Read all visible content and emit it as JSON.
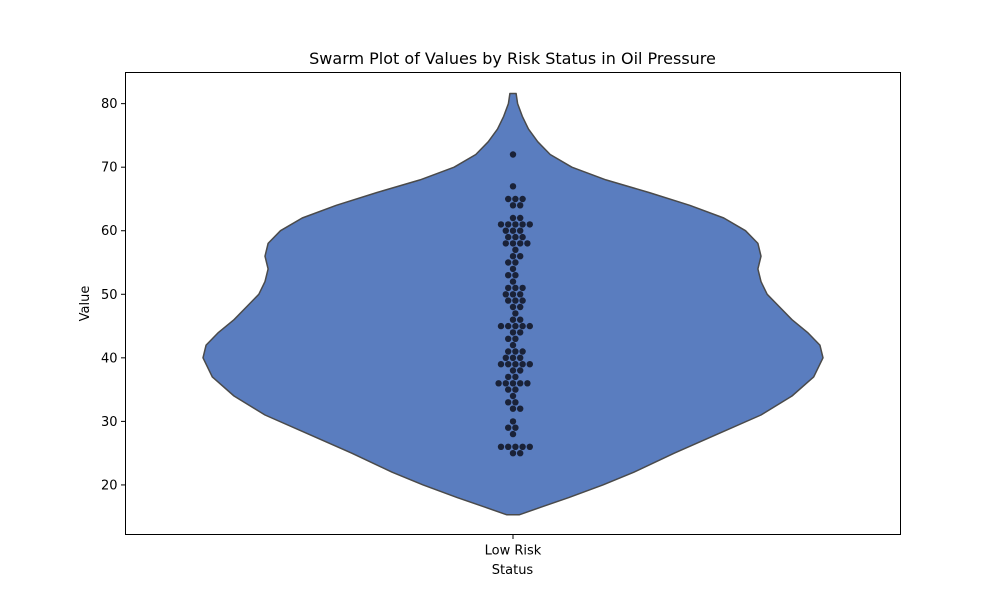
{
  "chart_data": {
    "type": "violin",
    "overlay": "swarm",
    "title": "Swarm Plot of Values by Risk Status in Oil Pressure",
    "xlabel": "Status",
    "ylabel": "Value",
    "categories": [
      "Low Risk"
    ],
    "ylim": [
      12.2,
      84.9
    ],
    "yticks": [
      20,
      30,
      40,
      50,
      60,
      70,
      80
    ],
    "grid": false,
    "colors": {
      "violin_fill": "#5a7dbf",
      "violin_edge": "#4a4a4a",
      "points": "#1a2238"
    },
    "violin_range": [
      15.3,
      81.6
    ],
    "violin_density": [
      [
        15.3,
        0.02
      ],
      [
        16.5,
        0.09
      ],
      [
        18,
        0.18
      ],
      [
        20,
        0.29
      ],
      [
        22,
        0.39
      ],
      [
        25,
        0.52
      ],
      [
        28,
        0.66
      ],
      [
        31,
        0.8
      ],
      [
        34,
        0.9
      ],
      [
        37,
        0.97
      ],
      [
        40,
        1.0
      ],
      [
        42,
        0.99
      ],
      [
        44,
        0.95
      ],
      [
        46,
        0.9
      ],
      [
        48,
        0.86
      ],
      [
        50,
        0.82
      ],
      [
        52,
        0.8
      ],
      [
        54,
        0.79
      ],
      [
        56,
        0.8
      ],
      [
        58,
        0.79
      ],
      [
        60,
        0.75
      ],
      [
        62,
        0.68
      ],
      [
        64,
        0.57
      ],
      [
        66,
        0.44
      ],
      [
        68,
        0.3
      ],
      [
        70,
        0.19
      ],
      [
        72,
        0.12
      ],
      [
        74,
        0.08
      ],
      [
        76,
        0.05
      ],
      [
        78,
        0.03
      ],
      [
        80,
        0.015
      ],
      [
        81.6,
        0.01
      ]
    ],
    "values": [
      72,
      67,
      65,
      65,
      65,
      64,
      64,
      62,
      62,
      61,
      61,
      61,
      61,
      61,
      60,
      60,
      60,
      59,
      59,
      59,
      58,
      58,
      58,
      58,
      57,
      56,
      56,
      55,
      55,
      54,
      53,
      53,
      52,
      51,
      51,
      51,
      50,
      50,
      50,
      49,
      49,
      49,
      48,
      48,
      47,
      46,
      46,
      45,
      45,
      45,
      45,
      45,
      44,
      44,
      43,
      43,
      42,
      41,
      41,
      41,
      40,
      40,
      40,
      39,
      39,
      39,
      39,
      39,
      38,
      38,
      37,
      37,
      36,
      36,
      36,
      36,
      36,
      35,
      35,
      34,
      33,
      33,
      32,
      32,
      30,
      29,
      29,
      28,
      26,
      26,
      26,
      26,
      26,
      25,
      25
    ]
  }
}
